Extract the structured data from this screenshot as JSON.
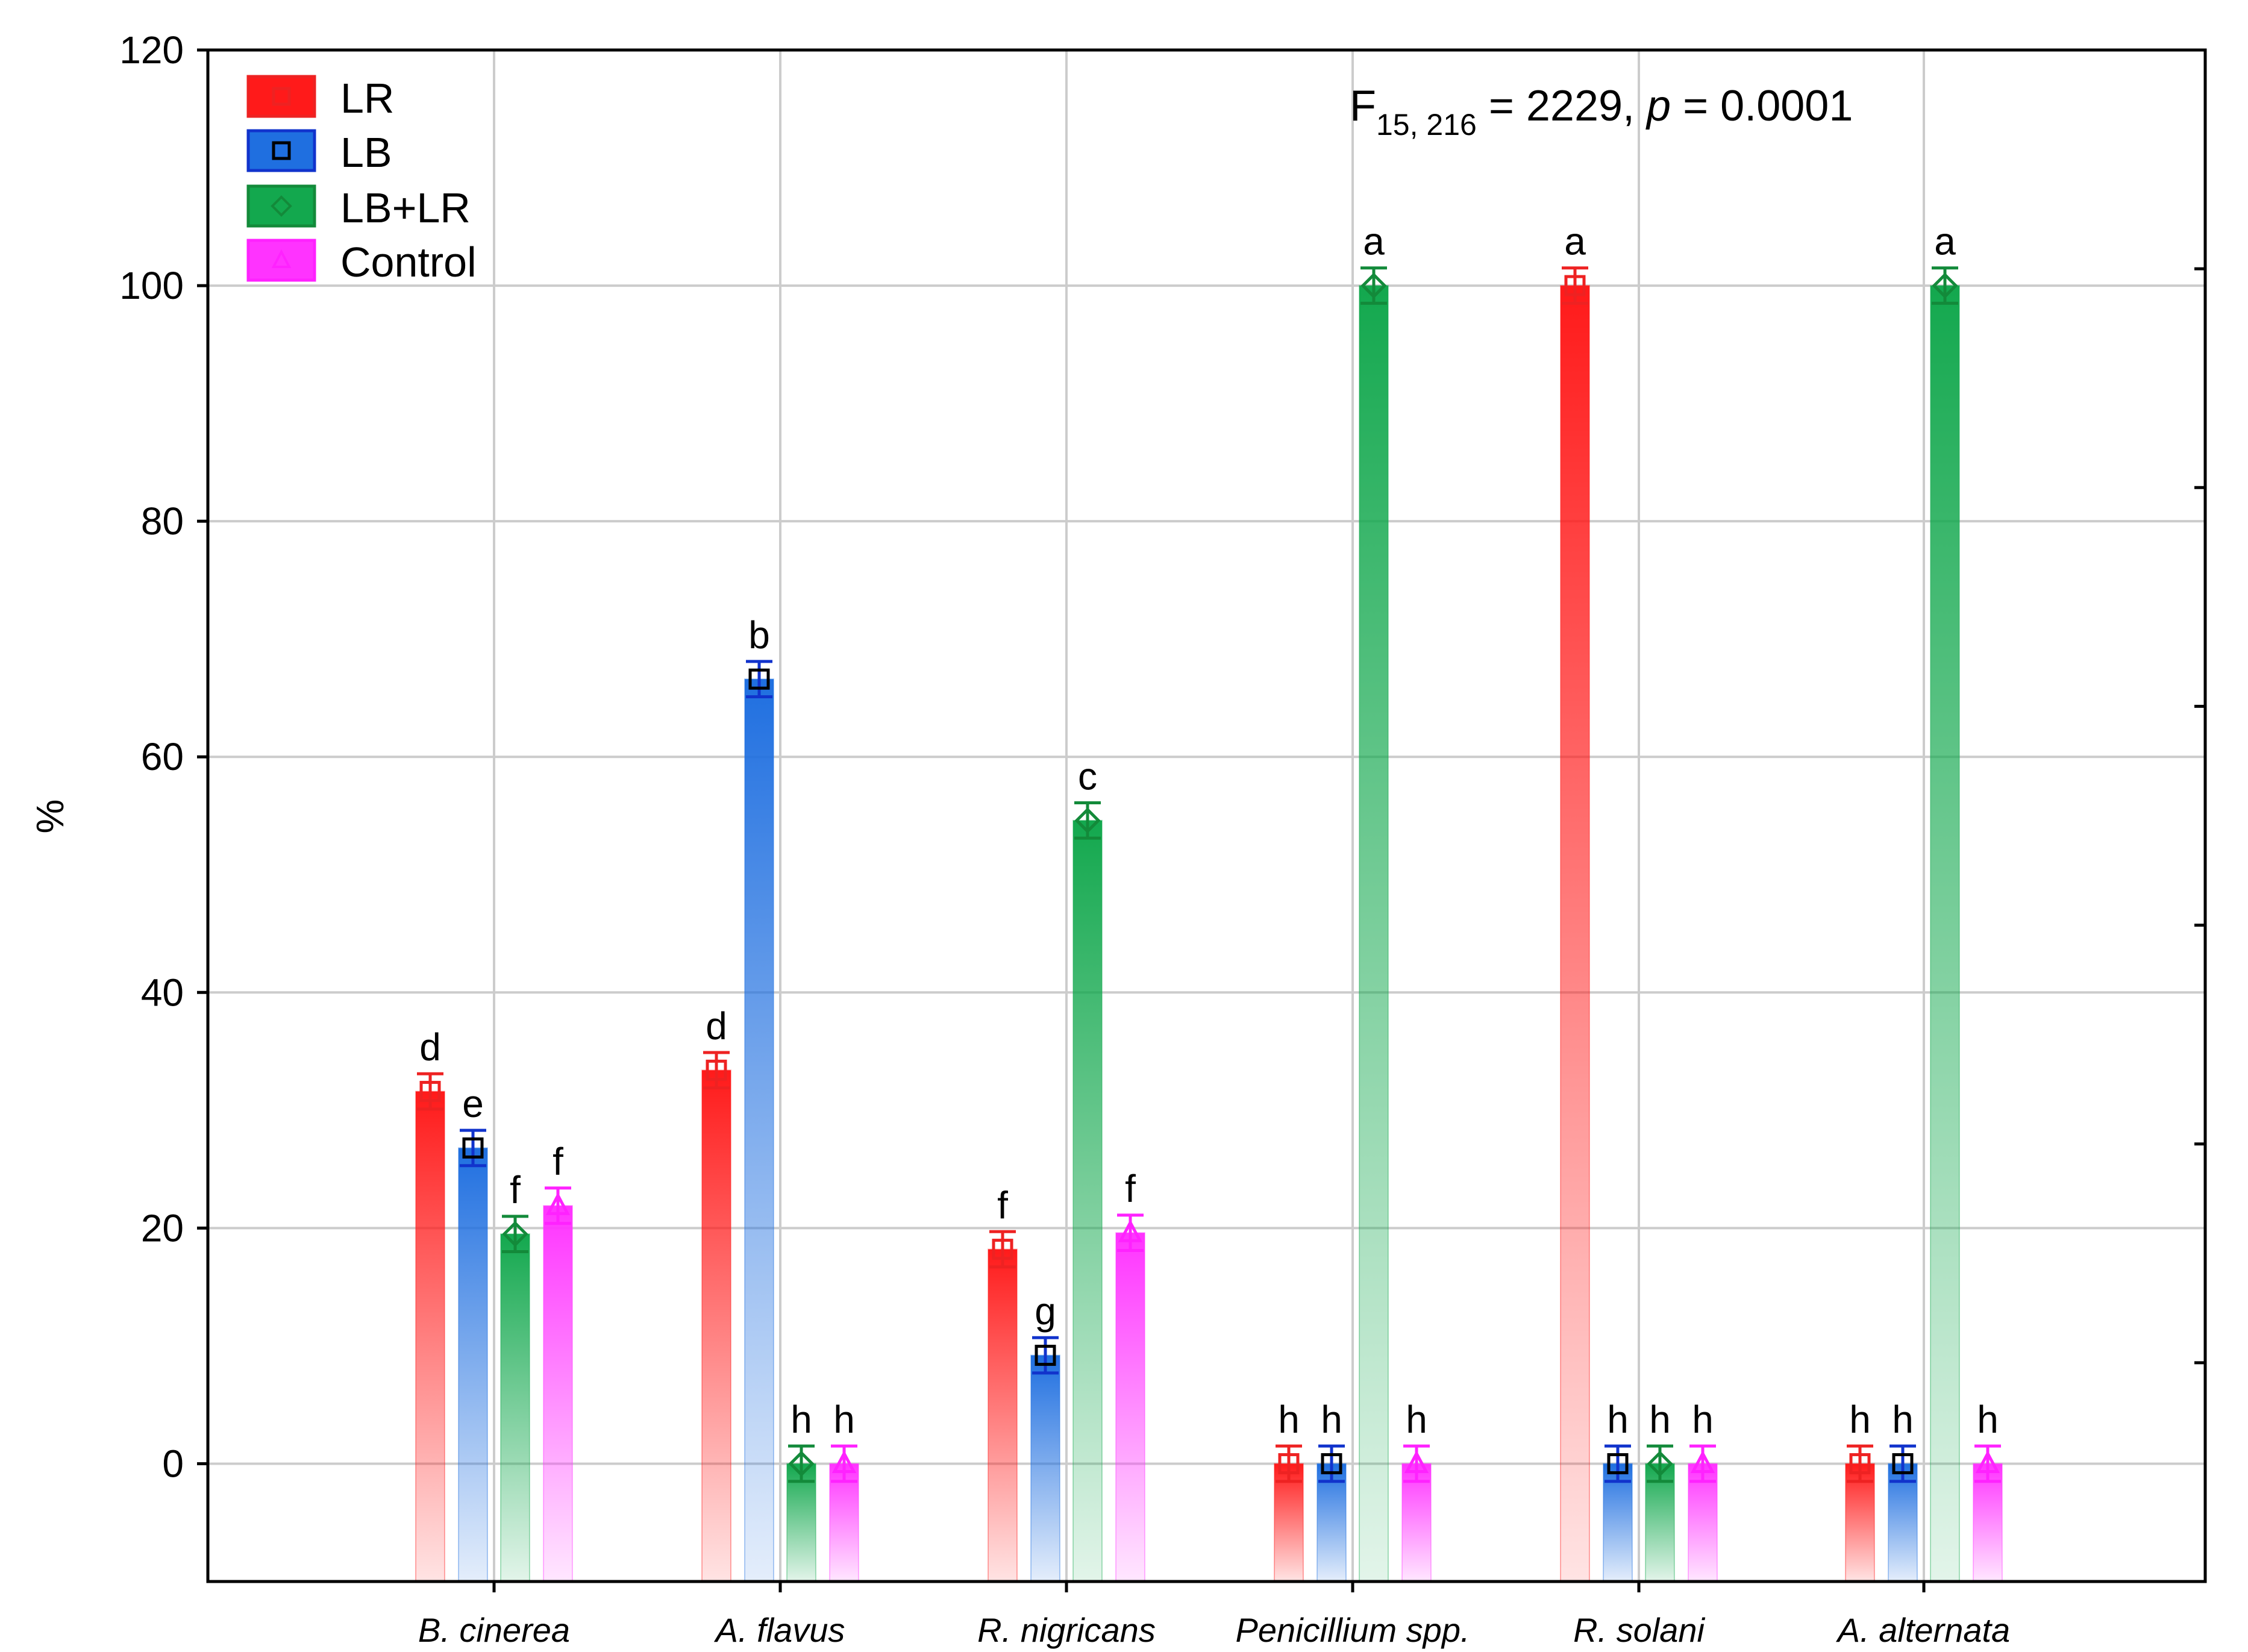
{
  "chart_data": {
    "type": "bar",
    "title": "",
    "xlabel": "",
    "ylabel": "%",
    "ylim": [
      -10,
      120
    ],
    "yticks": [
      0,
      20,
      40,
      60,
      80,
      100,
      120
    ],
    "grid": true,
    "legend_position": "top-left",
    "annotation": {
      "prefix": "F",
      "subscript": "15, 216",
      "middle": " = 2229, ",
      "p_symbol": "p",
      "suffix": " = 0.0001"
    },
    "categories": [
      "B. cinerea",
      "A. flavus",
      "R. nigricans",
      "Penicillium spp.",
      "R. solani",
      "A. alternata"
    ],
    "series": [
      {
        "name": "LR",
        "color": "#ff1a1a",
        "marker": "square",
        "values": [
          31.6,
          33.4,
          18.2,
          0,
          100,
          0
        ],
        "errors": [
          1.5,
          1.5,
          1.5,
          1.5,
          1.5,
          1.5
        ],
        "letters": [
          "d",
          "d",
          "f",
          "h",
          "a",
          "h"
        ]
      },
      {
        "name": "LB",
        "color": "#1f6fe0",
        "marker": "square",
        "values": [
          26.8,
          66.6,
          9.2,
          0,
          0,
          0
        ],
        "errors": [
          1.5,
          1.5,
          1.5,
          1.5,
          1.5,
          1.5
        ],
        "letters": [
          "e",
          "b",
          "g",
          "h",
          "h",
          "h"
        ]
      },
      {
        "name": "LB+LR",
        "color": "#13a84e",
        "marker": "diamond",
        "values": [
          19.5,
          0,
          54.6,
          100,
          0,
          100
        ],
        "errors": [
          1.5,
          1.5,
          1.5,
          1.5,
          1.5,
          1.5
        ],
        "letters": [
          "f",
          "h",
          "c",
          "a",
          "h",
          "a"
        ]
      },
      {
        "name": "Control",
        "color": "#ff33ff",
        "marker": "triangle",
        "values": [
          21.9,
          0,
          19.6,
          0,
          0,
          0
        ],
        "errors": [
          1.5,
          1.5,
          1.5,
          1.5,
          1.5,
          1.5
        ],
        "letters": [
          "f",
          "h",
          "f",
          "h",
          "h",
          "h"
        ]
      }
    ]
  },
  "styles": {
    "marker_colors": {
      "LR": "#ee2222",
      "LB": "#000000",
      "LB+LR": "#138a3a",
      "Control": "#ff22ff"
    },
    "errorbar_colors": {
      "LR": "#ee2222",
      "LB": "#1133cc",
      "LB+LR": "#138a3a",
      "Control": "#ff22ff"
    },
    "grid_color": "#cccccc",
    "axis_color": "#000000"
  }
}
